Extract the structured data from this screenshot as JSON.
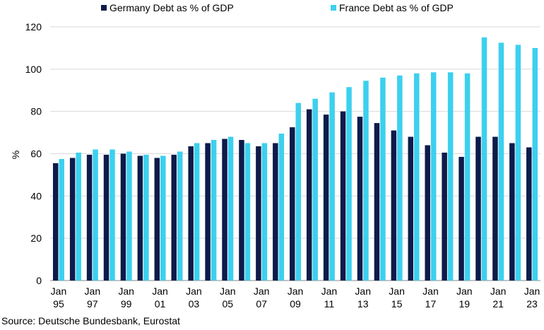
{
  "chart_data": {
    "type": "bar",
    "title": "",
    "xlabel": "",
    "ylabel": "%",
    "ylim": [
      0,
      120
    ],
    "yticks": [
      0,
      20,
      40,
      60,
      80,
      100,
      120
    ],
    "grid": "horizontal",
    "legend_position": "top",
    "x_tick_labels": [
      {
        "index": 0,
        "line1": "Jan",
        "line2": "95"
      },
      {
        "index": 2,
        "line1": "Jan",
        "line2": "97"
      },
      {
        "index": 4,
        "line1": "Jan",
        "line2": "99"
      },
      {
        "index": 6,
        "line1": "Jan",
        "line2": "01"
      },
      {
        "index": 8,
        "line1": "Jan",
        "line2": "03"
      },
      {
        "index": 10,
        "line1": "Jan",
        "line2": "05"
      },
      {
        "index": 12,
        "line1": "Jan",
        "line2": "07"
      },
      {
        "index": 14,
        "line1": "Jan",
        "line2": "09"
      },
      {
        "index": 16,
        "line1": "Jan",
        "line2": "11"
      },
      {
        "index": 18,
        "line1": "Jan",
        "line2": "13"
      },
      {
        "index": 20,
        "line1": "Jan",
        "line2": "15"
      },
      {
        "index": 22,
        "line1": "Jan",
        "line2": "17"
      },
      {
        "index": 24,
        "line1": "Jan",
        "line2": "19"
      },
      {
        "index": 26,
        "line1": "Jan",
        "line2": "21"
      },
      {
        "index": 28,
        "line1": "Jan",
        "line2": "23"
      }
    ],
    "series": [
      {
        "name": "Germany Debt as % of GDP",
        "color": "#0d1b4a",
        "values": [
          55.5,
          58.0,
          59.5,
          59.5,
          60.0,
          59.0,
          58.0,
          59.5,
          63.5,
          65.0,
          67.0,
          66.5,
          63.5,
          65.0,
          72.5,
          81.0,
          78.5,
          80.0,
          77.5,
          74.5,
          71.0,
          68.0,
          64.0,
          60.5,
          58.5,
          68.0,
          68.0,
          65.0,
          63.0
        ]
      },
      {
        "name": "France Debt as % of GDP",
        "color": "#3cd0ef",
        "values": [
          57.5,
          60.5,
          62.0,
          62.0,
          61.0,
          59.5,
          59.0,
          61.0,
          65.0,
          66.5,
          68.0,
          65.0,
          65.0,
          69.5,
          84.0,
          86.0,
          89.0,
          91.5,
          94.5,
          96.0,
          97.0,
          98.0,
          98.5,
          98.5,
          98.0,
          115.0,
          112.5,
          111.5,
          110.0
        ]
      }
    ]
  },
  "footer": {
    "source": "Source: Deutsche Bundesbank, Eurostat"
  }
}
